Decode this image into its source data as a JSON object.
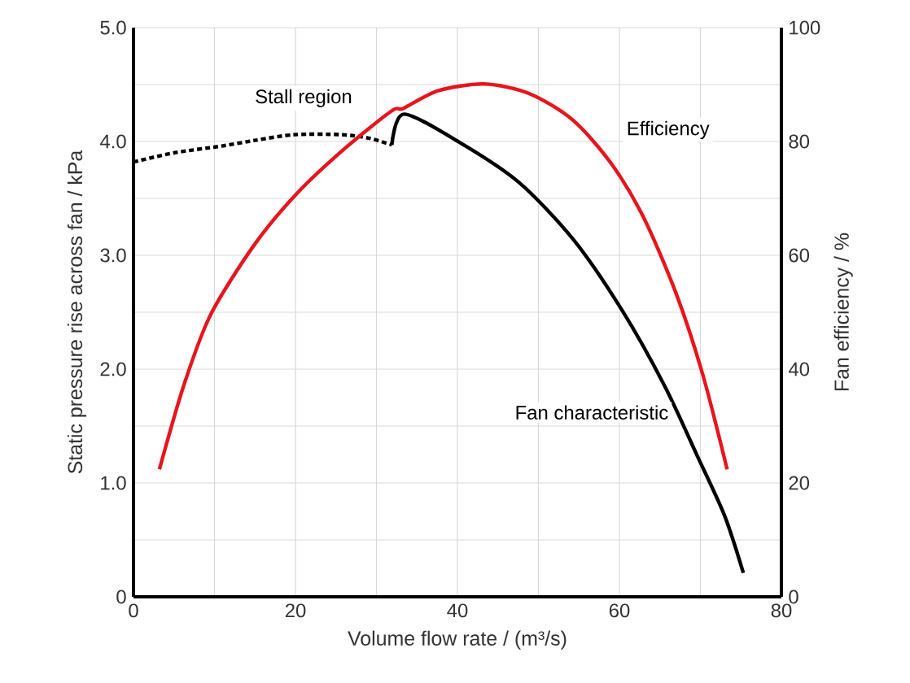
{
  "chart_data": {
    "type": "line",
    "xlabel": "Volume flow rate / (m³/s)",
    "ylabel": "Static pressure rise across fan / kPa",
    "y2label": "Fan efficiency / %",
    "xlim": [
      0,
      80
    ],
    "xticks": [
      0,
      {
        "value": 10,
        "label": null
      },
      20,
      {
        "value": 30,
        "label": null
      },
      40,
      {
        "value": 50,
        "label": null
      },
      60,
      {
        "value": 70,
        "label": null
      },
      80
    ],
    "ylim": [
      0,
      5
    ],
    "yticks": [
      0,
      {
        "value": 0.5,
        "label": null
      },
      {
        "value": 1,
        "label": "1.0"
      },
      {
        "value": 1.5,
        "label": null
      },
      {
        "value": 2,
        "label": "2.0"
      },
      {
        "value": 2.5,
        "label": null
      },
      {
        "value": 3,
        "label": "3.0"
      },
      {
        "value": 3.5,
        "label": null
      },
      {
        "value": 4,
        "label": "4.0"
      },
      {
        "value": 4.5,
        "label": null
      },
      {
        "value": 5,
        "label": "5.0"
      }
    ],
    "y2lim": [
      0,
      100
    ],
    "y2ticks": [
      0,
      20,
      40,
      60,
      80,
      100
    ],
    "grid": true,
    "series": [
      {
        "name": "Stall region",
        "color": "#000000",
        "line_style": "dashed",
        "x": [
          0,
          5,
          10.9,
          15,
          19.9,
          25.6,
          29,
          31.9
        ],
        "values": [
          3.82,
          3.9,
          3.96,
          4.01,
          4.06,
          4.06,
          4.03,
          3.97
        ]
      },
      {
        "name": "Fan characteristic",
        "color": "#000000",
        "line_style": "solid",
        "x": [
          31.9,
          33.4,
          40.3,
          47.6,
          54.3,
          60.3,
          65.6,
          69.6,
          73.0,
          75.3
        ],
        "values": [
          3.97,
          4.24,
          3.99,
          3.64,
          3.14,
          2.52,
          1.85,
          1.24,
          0.71,
          0.21
        ]
      },
      {
        "name": "Efficiency",
        "color": "#e8141c",
        "line_style": "solid",
        "axis": "y2",
        "x": [
          3.2,
          6.2,
          9.5,
          14.9,
          20.2,
          26.2,
          31.9,
          33.3,
          37.6,
          43.3,
          48.9,
          54.3,
          59.0,
          63.0,
          67.0,
          70.3,
          73.3
        ],
        "values": [
          22.4,
          37.1,
          49.5,
          61.8,
          70.9,
          78.9,
          85.4,
          85.8,
          88.9,
          90.1,
          88.4,
          83.7,
          76.1,
          66.6,
          53.3,
          39.0,
          22.4
        ]
      }
    ]
  }
}
